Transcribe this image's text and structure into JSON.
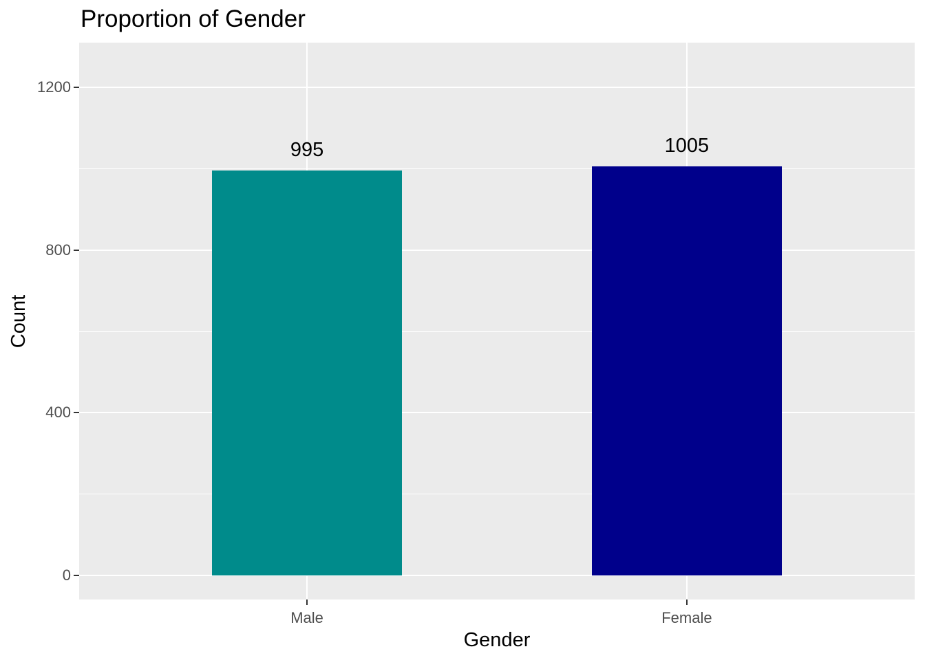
{
  "chart_data": {
    "type": "bar",
    "title": "Proportion of Gender",
    "xlabel": "Gender",
    "ylabel": "Count",
    "categories": [
      "Male",
      "Female"
    ],
    "values": [
      995,
      1005
    ],
    "bar_labels": [
      "995",
      "1005"
    ],
    "bar_colors": [
      "#008B8B",
      "#00008B"
    ],
    "y_ticks": [
      0,
      400,
      800,
      1200
    ],
    "y_minor_ticks": [
      200,
      600,
      1000
    ],
    "ylim": [
      0,
      1310
    ],
    "grid": "on",
    "legend": "none",
    "colors": {
      "plot_bg": "#FFFFFF",
      "panel_bg": "#EBEBEB",
      "grid": "#FFFFFF",
      "tick_text": "#4D4D4D",
      "tick_mark": "#333333",
      "title_text": "#000000",
      "axis_title_text": "#000000"
    }
  }
}
